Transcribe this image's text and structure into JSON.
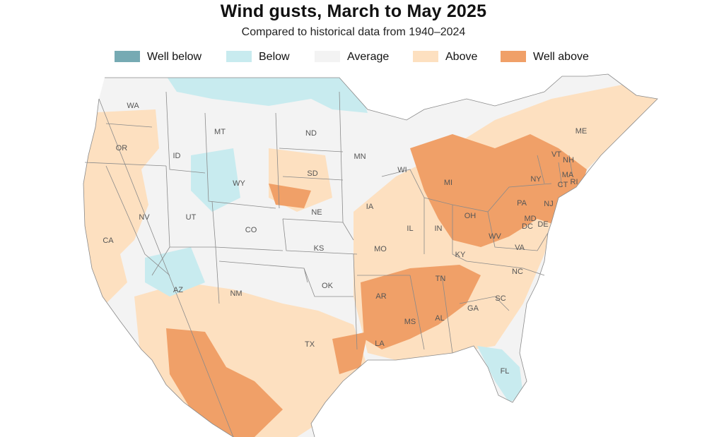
{
  "title": "Wind gusts, March to May 2025",
  "subtitle": "Compared to historical data from 1940–2024",
  "legend": [
    {
      "label": "Well below",
      "color": "#76aab3"
    },
    {
      "label": "Below",
      "color": "#c8ebef"
    },
    {
      "label": "Average",
      "color": "#f3f3f3"
    },
    {
      "label": "Above",
      "color": "#fde0c0"
    },
    {
      "label": "Well above",
      "color": "#f0a068"
    }
  ],
  "states": [
    "WA",
    "OR",
    "CA",
    "ID",
    "NV",
    "MT",
    "WY",
    "UT",
    "AZ",
    "CO",
    "NM",
    "ND",
    "SD",
    "NE",
    "KS",
    "OK",
    "TX",
    "MN",
    "IA",
    "MO",
    "AR",
    "LA",
    "WI",
    "IL",
    "MI",
    "IN",
    "OH",
    "KY",
    "TN",
    "MS",
    "AL",
    "GA",
    "FL",
    "SC",
    "NC",
    "VA",
    "WV",
    "PA",
    "NY",
    "VT",
    "NH",
    "ME",
    "MA",
    "CT",
    "RI",
    "NJ",
    "DE",
    "MD",
    "DC"
  ]
}
